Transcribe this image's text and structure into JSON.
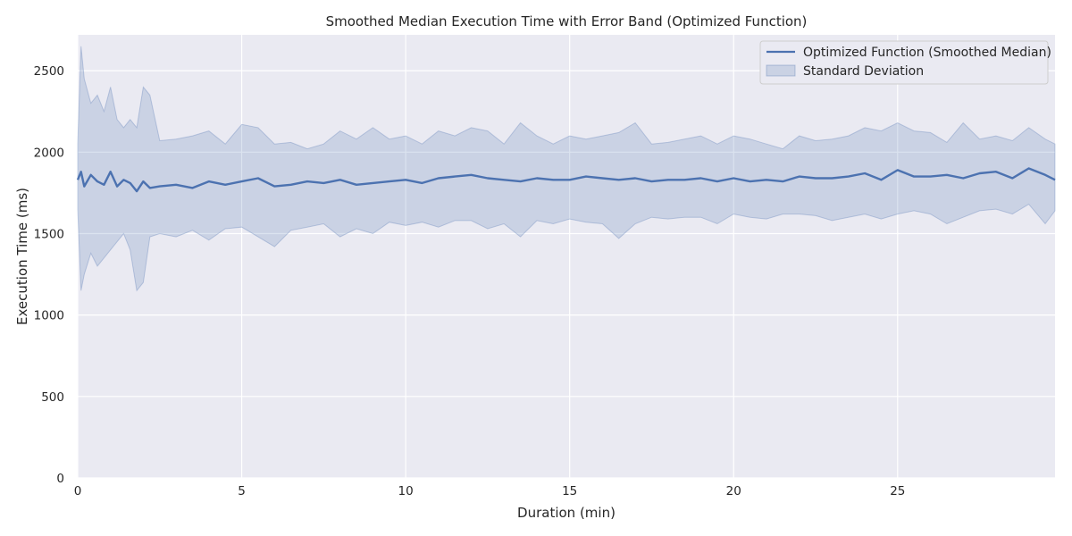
{
  "chart_data": {
    "type": "line",
    "title": "Smoothed Median Execution Time with Error Band (Optimized Function)",
    "xlabel": "Duration (min)",
    "ylabel": "Execution Time (ms)",
    "xlim": [
      0,
      29.8
    ],
    "ylim": [
      0,
      2720
    ],
    "x_ticks": [
      0,
      5,
      10,
      15,
      20,
      25
    ],
    "y_ticks": [
      0,
      500,
      1000,
      1500,
      2000,
      2500
    ],
    "grid": true,
    "legend_position": "top-right",
    "colors": {
      "line": "#4c72b0",
      "band": "#4c72b0",
      "background": "#eaeaf2",
      "grid": "#ffffff"
    },
    "series": [
      {
        "name": "Optimized Function (Smoothed Median)",
        "kind": "line",
        "x": [
          0.0,
          0.1,
          0.2,
          0.4,
          0.6,
          0.8,
          1.0,
          1.2,
          1.4,
          1.6,
          1.8,
          2.0,
          2.2,
          2.5,
          3.0,
          3.5,
          4.0,
          4.5,
          5.0,
          5.5,
          6.0,
          6.5,
          7.0,
          7.5,
          8.0,
          8.5,
          9.0,
          9.5,
          10.0,
          10.5,
          11.0,
          11.5,
          12.0,
          12.5,
          13.0,
          13.5,
          14.0,
          14.5,
          15.0,
          15.5,
          16.0,
          16.5,
          17.0,
          17.5,
          18.0,
          18.5,
          19.0,
          19.5,
          20.0,
          20.5,
          21.0,
          21.5,
          22.0,
          22.5,
          23.0,
          23.5,
          24.0,
          24.5,
          25.0,
          25.5,
          26.0,
          26.5,
          27.0,
          27.5,
          28.0,
          28.5,
          29.0,
          29.5,
          29.8
        ],
        "y": [
          1830,
          1880,
          1790,
          1860,
          1820,
          1800,
          1880,
          1790,
          1830,
          1810,
          1760,
          1820,
          1780,
          1790,
          1800,
          1780,
          1820,
          1800,
          1820,
          1840,
          1790,
          1800,
          1820,
          1810,
          1830,
          1800,
          1810,
          1820,
          1830,
          1810,
          1840,
          1850,
          1860,
          1840,
          1830,
          1820,
          1840,
          1830,
          1830,
          1850,
          1840,
          1830,
          1840,
          1820,
          1830,
          1830,
          1840,
          1820,
          1840,
          1820,
          1830,
          1820,
          1850,
          1840,
          1840,
          1850,
          1870,
          1830,
          1890,
          1850,
          1850,
          1860,
          1840,
          1870,
          1880,
          1840,
          1900,
          1860,
          1830
        ]
      },
      {
        "name": "Standard Deviation",
        "kind": "band",
        "x": [
          0.0,
          0.1,
          0.2,
          0.4,
          0.6,
          0.8,
          1.0,
          1.2,
          1.4,
          1.6,
          1.8,
          2.0,
          2.2,
          2.5,
          3.0,
          3.5,
          4.0,
          4.5,
          5.0,
          5.5,
          6.0,
          6.5,
          7.0,
          7.5,
          8.0,
          8.5,
          9.0,
          9.5,
          10.0,
          10.5,
          11.0,
          11.5,
          12.0,
          12.5,
          13.0,
          13.5,
          14.0,
          14.5,
          15.0,
          15.5,
          16.0,
          16.5,
          17.0,
          17.5,
          18.0,
          18.5,
          19.0,
          19.5,
          20.0,
          20.5,
          21.0,
          21.5,
          22.0,
          22.5,
          23.0,
          23.5,
          24.0,
          24.5,
          25.0,
          25.5,
          26.0,
          26.5,
          27.0,
          27.5,
          28.0,
          28.5,
          29.0,
          29.5,
          29.8
        ],
        "upper": [
          2050,
          2650,
          2450,
          2300,
          2350,
          2250,
          2400,
          2200,
          2150,
          2200,
          2150,
          2400,
          2350,
          2070,
          2080,
          2100,
          2130,
          2050,
          2170,
          2150,
          2050,
          2060,
          2020,
          2050,
          2130,
          2080,
          2150,
          2080,
          2100,
          2050,
          2130,
          2100,
          2150,
          2130,
          2050,
          2180,
          2100,
          2050,
          2100,
          2080,
          2100,
          2120,
          2180,
          2050,
          2060,
          2080,
          2100,
          2050,
          2100,
          2080,
          2050,
          2020,
          2100,
          2070,
          2080,
          2100,
          2150,
          2130,
          2180,
          2130,
          2120,
          2060,
          2180,
          2080,
          2100,
          2070,
          2150,
          2080,
          2050
        ],
        "lower": [
          1650,
          1150,
          1250,
          1380,
          1300,
          1350,
          1400,
          1450,
          1500,
          1400,
          1150,
          1200,
          1480,
          1500,
          1480,
          1520,
          1460,
          1530,
          1540,
          1480,
          1420,
          1520,
          1540,
          1560,
          1480,
          1530,
          1500,
          1570,
          1550,
          1570,
          1540,
          1580,
          1580,
          1530,
          1560,
          1480,
          1580,
          1560,
          1590,
          1570,
          1560,
          1470,
          1560,
          1600,
          1590,
          1600,
          1600,
          1560,
          1620,
          1600,
          1590,
          1620,
          1620,
          1610,
          1580,
          1600,
          1620,
          1590,
          1620,
          1640,
          1620,
          1560,
          1600,
          1640,
          1650,
          1620,
          1680,
          1560,
          1640
        ]
      }
    ]
  }
}
